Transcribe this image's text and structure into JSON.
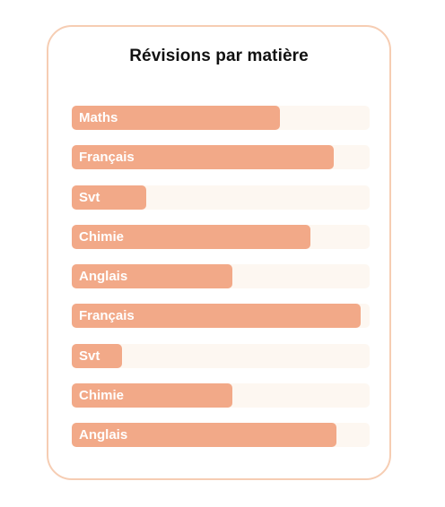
{
  "chart_data": {
    "type": "bar",
    "orientation": "horizontal",
    "title": "Révisions par matière",
    "xlabel": "",
    "ylabel": "",
    "xlim": [
      0,
      100
    ],
    "categories": [
      "Maths",
      "Français",
      "Svt",
      "Chimie",
      "Anglais",
      "Français",
      "Svt",
      "Chimie",
      "Anglais"
    ],
    "values": [
      70,
      88,
      25,
      80,
      54,
      97,
      17,
      54,
      89
    ],
    "grid": false,
    "legend": "none",
    "colors": {
      "bar": "#f2a988",
      "track": "#fdf7f1",
      "card_border": "#f6cdb3",
      "title": "#111111",
      "label": "#ffffff"
    }
  }
}
